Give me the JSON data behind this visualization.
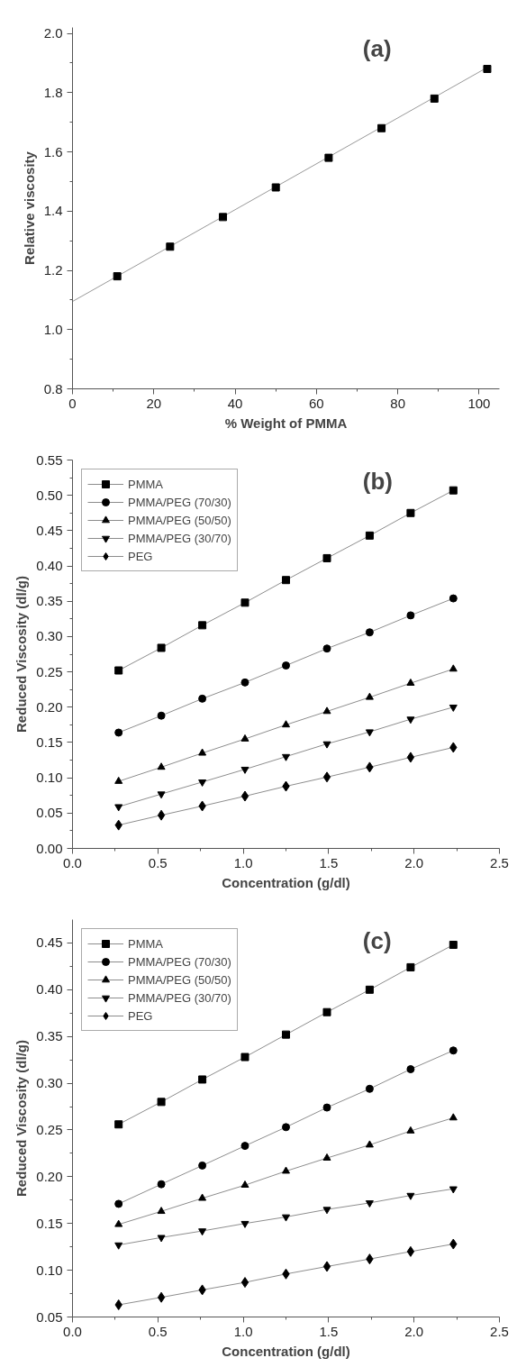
{
  "chart_data": [
    {
      "type": "scatter",
      "xlabel": "% Weight of PMMA",
      "ylabel": "Relative viscosity",
      "annotations": [
        "(a)"
      ],
      "legend": false,
      "grid": false,
      "xlim": [
        0,
        105
      ],
      "ylim": [
        0.8,
        2.02
      ],
      "xticks": [
        0,
        20,
        40,
        60,
        80,
        100
      ],
      "yticks": [
        {
          "value": 0.8,
          "label": "0.8"
        },
        {
          "value": 1.0,
          "label": "1.0"
        },
        {
          "value": 1.2,
          "label": "1.2"
        },
        {
          "value": 1.4,
          "label": "1.4"
        },
        {
          "value": 1.6,
          "label": "1.6"
        },
        {
          "value": 1.8,
          "label": "1.8"
        },
        {
          "value": 2.0,
          "label": "2.0"
        }
      ],
      "series": [
        {
          "type": "line",
          "color": "#999999",
          "marker": "none",
          "x": [
            0,
            102
          ],
          "values": [
            1.095,
            1.885
          ]
        },
        {
          "color": "#000000",
          "marker": "square",
          "x": [
            11,
            24,
            37,
            50,
            63,
            76,
            89,
            102
          ],
          "values": [
            1.18,
            1.28,
            1.38,
            1.48,
            1.58,
            1.68,
            1.78,
            1.88
          ]
        }
      ]
    },
    {
      "type": "line",
      "xlabel": "Concentration (g/dl)",
      "ylabel": "Reduced Viscosity (dl/g)",
      "annotations": [
        "(b)"
      ],
      "legend": "top left",
      "grid": false,
      "xlim": [
        0,
        2.5
      ],
      "ylim": [
        0,
        0.55
      ],
      "xticks": [
        {
          "value": 0,
          "label": "0.0"
        },
        {
          "value": 0.5,
          "label": "0.5"
        },
        {
          "value": 1,
          "label": "1.0"
        },
        {
          "value": 1.5,
          "label": "1.5"
        },
        {
          "value": 2,
          "label": "2.0"
        },
        {
          "value": 2.5,
          "label": "2.5"
        }
      ],
      "yticks": [
        {
          "value": 0,
          "label": "0.00"
        },
        {
          "value": 0.05,
          "label": "0.05"
        },
        {
          "value": 0.1,
          "label": "0.10"
        },
        {
          "value": 0.15,
          "label": "0.15"
        },
        {
          "value": 0.2,
          "label": "0.20"
        },
        {
          "value": 0.25,
          "label": "0.25"
        },
        {
          "value": 0.3,
          "label": "0.30"
        },
        {
          "value": 0.35,
          "label": "0.35"
        },
        {
          "value": 0.4,
          "label": "0.40"
        },
        {
          "value": 0.45,
          "label": "0.45"
        },
        {
          "value": 0.5,
          "label": "0.50"
        },
        {
          "value": 0.55,
          "label": "0.55"
        }
      ],
      "x": [
        0.27,
        0.52,
        0.76,
        1.01,
        1.25,
        1.49,
        1.74,
        1.98,
        2.23
      ],
      "series": [
        {
          "name": "PMMA",
          "color": "#000000",
          "marker": "square",
          "values": [
            0.252,
            0.284,
            0.316,
            0.348,
            0.38,
            0.411,
            0.443,
            0.475,
            0.507
          ]
        },
        {
          "name": "PMMA/PEG (70/30)",
          "color": "#000000",
          "marker": "circle",
          "values": [
            0.164,
            0.188,
            0.212,
            0.235,
            0.259,
            0.283,
            0.306,
            0.33,
            0.354
          ]
        },
        {
          "name": "PMMA/PEG (50/50)",
          "color": "#000000",
          "marker": "triangle",
          "values": [
            0.095,
            0.115,
            0.135,
            0.155,
            0.175,
            0.194,
            0.214,
            0.234,
            0.254
          ]
        },
        {
          "name": "PMMA/PEG (30/70)",
          "color": "#000000",
          "marker": "triangle",
          "values": [
            0.059,
            0.077,
            0.094,
            0.112,
            0.13,
            0.148,
            0.165,
            0.183,
            0.2
          ]
        },
        {
          "name": "PEG",
          "color": "#000000",
          "marker": "diamond",
          "values": [
            0.033,
            0.047,
            0.06,
            0.074,
            0.088,
            0.101,
            0.115,
            0.129,
            0.143
          ]
        }
      ]
    },
    {
      "type": "line",
      "xlabel": "Concentration (g/dl)",
      "ylabel": "Reduced Viscosity (dl/g)",
      "annotations": [
        "(c)"
      ],
      "legend": "top left",
      "grid": false,
      "xlim": [
        0,
        2.5
      ],
      "ylim": [
        0.05,
        0.475
      ],
      "xticks": [
        {
          "value": 0,
          "label": "0.0"
        },
        {
          "value": 0.5,
          "label": "0.5"
        },
        {
          "value": 1,
          "label": "1.0"
        },
        {
          "value": 1.5,
          "label": "1.5"
        },
        {
          "value": 2,
          "label": "2.0"
        },
        {
          "value": 2.5,
          "label": "2.5"
        }
      ],
      "yticks": [
        {
          "value": 0.05,
          "label": "0.05"
        },
        {
          "value": 0.1,
          "label": "0.10"
        },
        {
          "value": 0.15,
          "label": "0.15"
        },
        {
          "value": 0.2,
          "label": "0.20"
        },
        {
          "value": 0.25,
          "label": "0.25"
        },
        {
          "value": 0.3,
          "label": "0.30"
        },
        {
          "value": 0.35,
          "label": "0.35"
        },
        {
          "value": 0.4,
          "label": "0.40"
        },
        {
          "value": 0.45,
          "label": "0.45"
        }
      ],
      "x": [
        0.27,
        0.52,
        0.76,
        1.01,
        1.25,
        1.49,
        1.74,
        1.98,
        2.23
      ],
      "series": [
        {
          "name": "PMMA",
          "color": "#000000",
          "marker": "square",
          "values": [
            0.256,
            0.28,
            0.304,
            0.328,
            0.352,
            0.376,
            0.4,
            0.424,
            0.448
          ]
        },
        {
          "name": "PMMA/PEG (70/30)",
          "color": "#000000",
          "marker": "circle",
          "values": [
            0.171,
            0.192,
            0.212,
            0.233,
            0.253,
            0.274,
            0.294,
            0.315,
            0.335
          ]
        },
        {
          "name": "PMMA/PEG (50/50)",
          "color": "#000000",
          "marker": "triangle",
          "values": [
            0.149,
            0.163,
            0.177,
            0.191,
            0.206,
            0.22,
            0.234,
            0.249,
            0.263
          ]
        },
        {
          "name": "PMMA/PEG (30/70)",
          "color": "#000000",
          "marker": "triangle",
          "values": [
            0.127,
            0.135,
            0.142,
            0.15,
            0.157,
            0.165,
            0.172,
            0.18,
            0.187
          ]
        },
        {
          "name": "PEG",
          "color": "#000000",
          "marker": "diamond",
          "values": [
            0.063,
            0.071,
            0.079,
            0.087,
            0.096,
            0.104,
            0.112,
            0.12,
            0.128
          ]
        }
      ]
    }
  ]
}
